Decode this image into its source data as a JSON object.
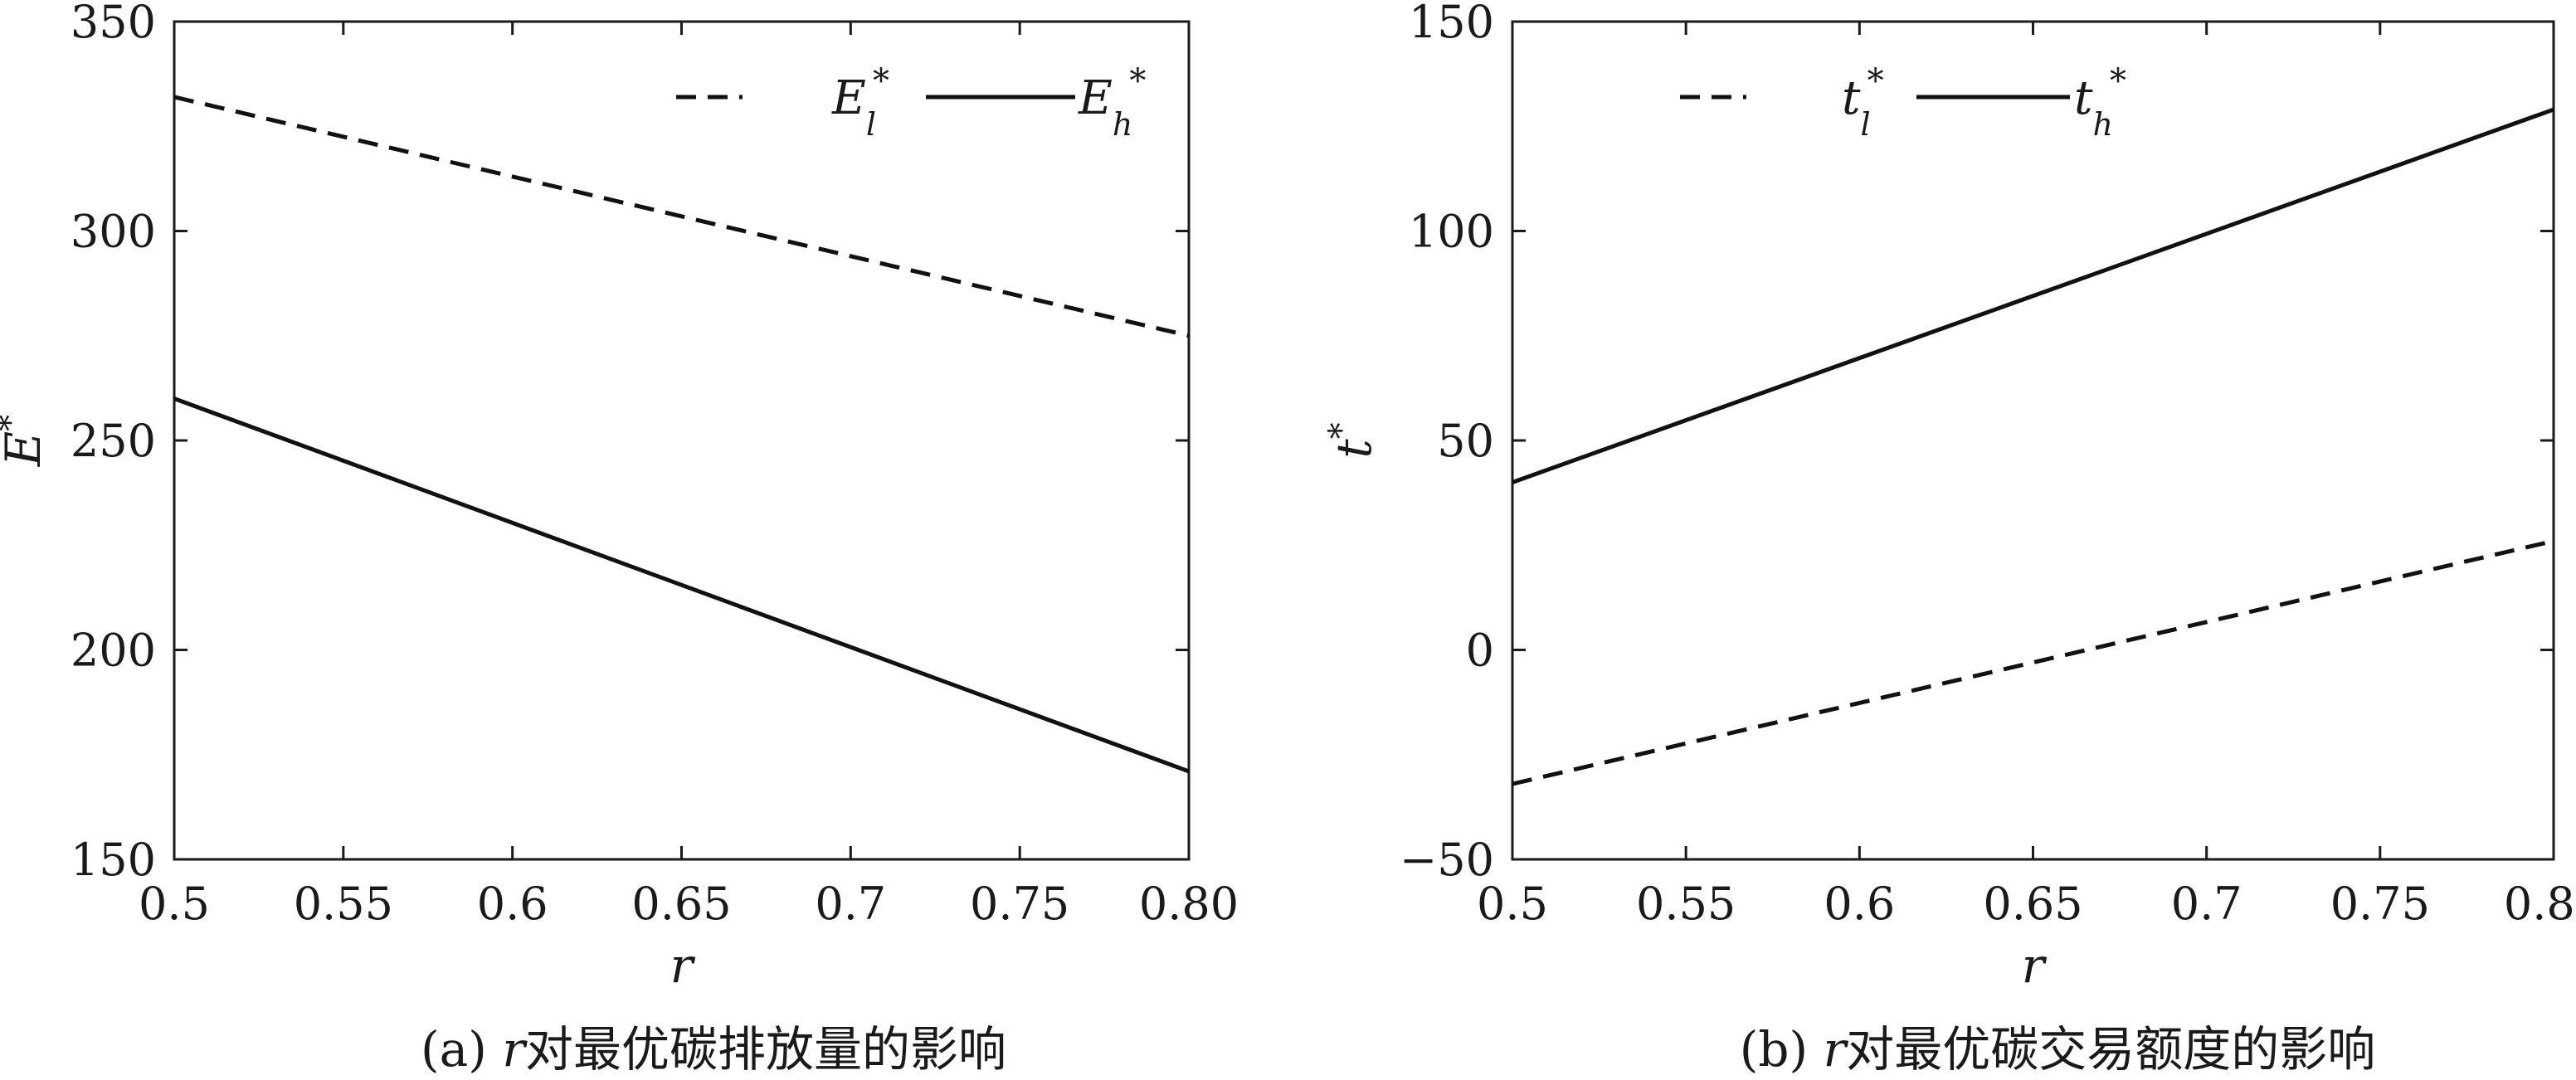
{
  "chart_data": [
    {
      "type": "line",
      "panel_label": "(a)",
      "caption_var": "r",
      "caption_rest": "对最优碳排放量的影响",
      "xlabel": "r",
      "ylabel": "E*",
      "xlim": [
        0.5,
        0.8
      ],
      "ylim": [
        150,
        350
      ],
      "xticks": [
        0.5,
        0.55,
        0.6,
        0.65,
        0.7,
        0.75,
        0.8
      ],
      "xtick_labels": [
        "0.5",
        "0.55",
        "0.6",
        "0.65",
        "0.7",
        "0.75",
        "0.80"
      ],
      "yticks": [
        150,
        200,
        250,
        300,
        350
      ],
      "ytick_labels": [
        "150",
        "200",
        "250",
        "300",
        "350"
      ],
      "grid": false,
      "legend_position": "top-right",
      "series": [
        {
          "name": "E_l*",
          "base": "E",
          "sub": "l",
          "style": "dashed",
          "x": [
            0.5,
            0.8
          ],
          "y": [
            332,
            275
          ]
        },
        {
          "name": "E_h*",
          "base": "E",
          "sub": "h",
          "style": "solid",
          "x": [
            0.5,
            0.8
          ],
          "y": [
            260,
            171
          ]
        }
      ]
    },
    {
      "type": "line",
      "panel_label": "(b)",
      "caption_var": "r",
      "caption_rest": "对最优碳交易额度的影响",
      "xlabel": "r",
      "ylabel": "t*",
      "xlim": [
        0.5,
        0.8
      ],
      "ylim": [
        -50,
        150
      ],
      "xticks": [
        0.5,
        0.55,
        0.6,
        0.65,
        0.7,
        0.75,
        0.8
      ],
      "xtick_labels": [
        "0.5",
        "0.55",
        "0.6",
        "0.65",
        "0.7",
        "0.75",
        "0.80"
      ],
      "yticks": [
        -50,
        0,
        50,
        100,
        150
      ],
      "ytick_labels": [
        "−50",
        "0",
        "50",
        "100",
        "150"
      ],
      "grid": false,
      "legend_position": "top-left",
      "series": [
        {
          "name": "t_l*",
          "base": "t",
          "sub": "l",
          "style": "dashed",
          "x": [
            0.5,
            0.8
          ],
          "y": [
            -32,
            26
          ]
        },
        {
          "name": "t_h*",
          "base": "t",
          "sub": "h",
          "style": "solid",
          "x": [
            0.5,
            0.8
          ],
          "y": [
            40,
            129
          ]
        }
      ]
    }
  ]
}
